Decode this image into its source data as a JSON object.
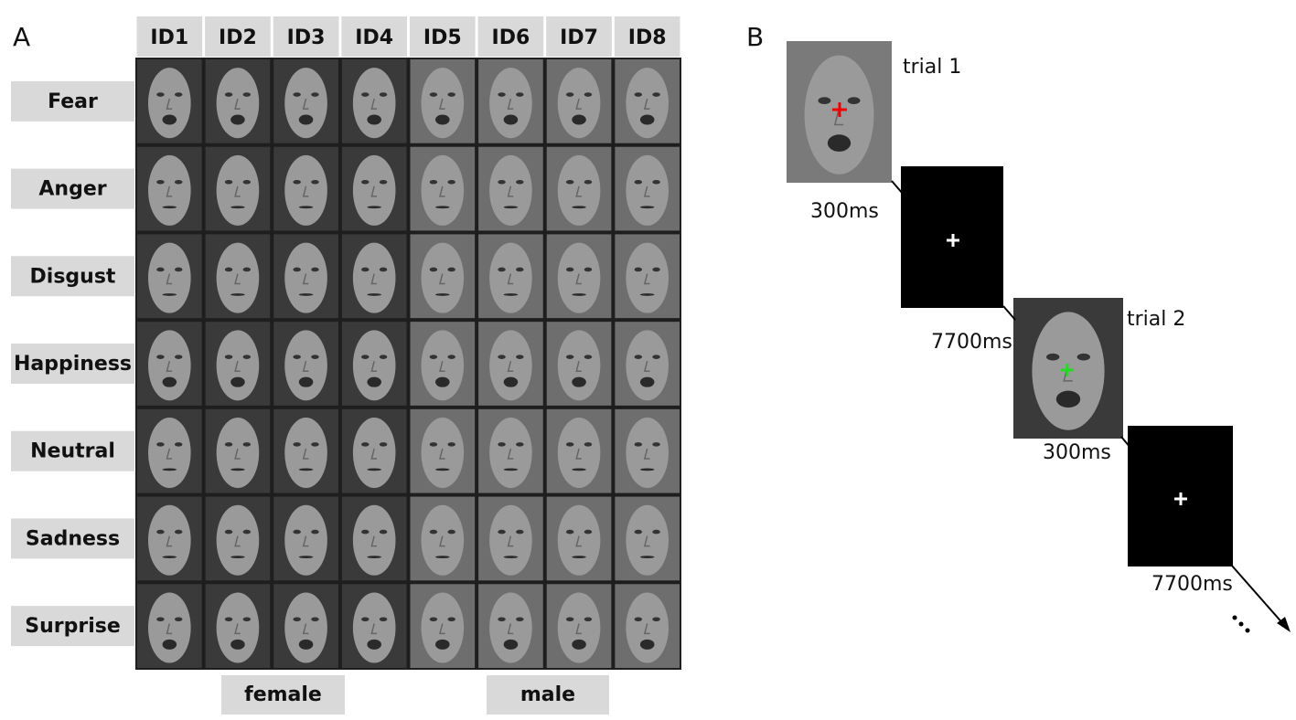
{
  "panel_labels": [
    "A",
    "B"
  ],
  "panel_a": {
    "columns": [
      "ID1",
      "ID2",
      "ID3",
      "ID4",
      "ID5",
      "ID6",
      "ID7",
      "ID8"
    ],
    "rows": [
      "Fear",
      "Anger",
      "Disgust",
      "Happiness",
      "Neutral",
      "Sadness",
      "Surprise"
    ],
    "groups": [
      "female",
      "male"
    ]
  },
  "panel_b": {
    "trials": [
      {
        "label": "trial 1",
        "stimulus_duration": "300ms",
        "blank_duration": "7700ms"
      },
      {
        "label": "trial 2",
        "stimulus_duration": "300ms",
        "blank_duration": "7700ms"
      }
    ]
  }
}
